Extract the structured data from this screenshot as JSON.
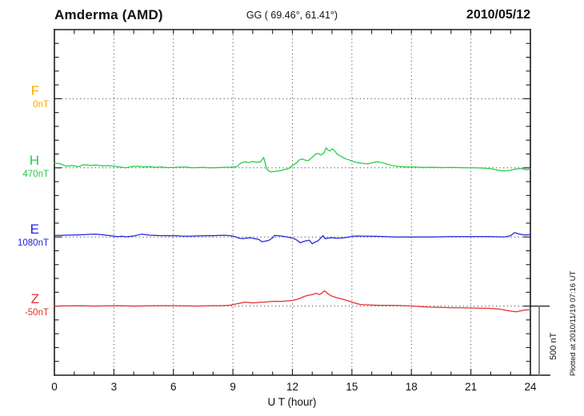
{
  "header": {
    "station": "Amderma (AMD)",
    "coordinates": "GG ( 69.46°,  61.41°)",
    "date": "2010/05/12"
  },
  "side_note": "Plotted at 2010/11/19 07:16 UT",
  "chart_data": {
    "type": "line",
    "title": "Amderma (AMD) magnetogram 2010/05/12",
    "xlabel": "U T (hour)",
    "x_range": [
      0,
      24
    ],
    "x_major_ticks": [
      0,
      3,
      6,
      9,
      12,
      15,
      18,
      21,
      24
    ],
    "x_minor_tick_step_hours": 1,
    "y_unit": "nT",
    "y_tick_step_nT": 100,
    "channel_spacing_nT": 500,
    "grid": {
      "vertical_dotted_at_hours": [
        3,
        6,
        9,
        12,
        15,
        18,
        21
      ],
      "horizontal_dotted_at_baselines": true
    },
    "scale_bar": {
      "label": "500 nT",
      "span_nT": 500
    },
    "channels": [
      {
        "label": "F",
        "baseline_label": "0nT",
        "baseline_nT": 0,
        "color": "#ffaa00",
        "points": []
      },
      {
        "label": "H",
        "baseline_label": "470nT",
        "baseline_nT": 470,
        "color": "#22cc44",
        "points": [
          [
            0,
            505
          ],
          [
            0.3,
            499
          ],
          [
            0.6,
            482
          ],
          [
            0.9,
            487
          ],
          [
            1.2,
            478
          ],
          [
            1.5,
            493
          ],
          [
            1.8,
            487
          ],
          [
            2.1,
            490
          ],
          [
            2.4,
            484
          ],
          [
            2.7,
            487
          ],
          [
            3,
            482
          ],
          [
            3.3,
            476
          ],
          [
            3.6,
            470
          ],
          [
            3.9,
            479
          ],
          [
            4.2,
            482
          ],
          [
            4.5,
            476
          ],
          [
            4.8,
            478
          ],
          [
            5.1,
            474
          ],
          [
            5.4,
            476
          ],
          [
            5.7,
            472
          ],
          [
            6,
            473
          ],
          [
            6.3,
            475
          ],
          [
            6.6,
            476
          ],
          [
            6.9,
            471
          ],
          [
            7.2,
            472
          ],
          [
            7.5,
            474
          ],
          [
            7.8,
            470
          ],
          [
            8.1,
            471
          ],
          [
            8.4,
            473
          ],
          [
            8.7,
            474
          ],
          [
            9,
            476
          ],
          [
            9.2,
            479
          ],
          [
            9.4,
            505
          ],
          [
            9.6,
            513
          ],
          [
            9.8,
            508
          ],
          [
            10,
            516
          ],
          [
            10.2,
            510
          ],
          [
            10.4,
            514
          ],
          [
            10.55,
            545
          ],
          [
            10.7,
            462
          ],
          [
            10.85,
            443
          ],
          [
            11,
            441
          ],
          [
            11.2,
            446
          ],
          [
            11.4,
            449
          ],
          [
            11.6,
            458
          ],
          [
            11.8,
            464
          ],
          [
            12,
            487
          ],
          [
            12.2,
            505
          ],
          [
            12.35,
            528
          ],
          [
            12.5,
            534
          ],
          [
            12.65,
            525
          ],
          [
            12.8,
            522
          ],
          [
            13,
            545
          ],
          [
            13.15,
            568
          ],
          [
            13.3,
            574
          ],
          [
            13.45,
            563
          ],
          [
            13.6,
            580
          ],
          [
            13.7,
            615
          ],
          [
            13.8,
            598
          ],
          [
            13.9,
            592
          ],
          [
            14,
            608
          ],
          [
            14.1,
            598
          ],
          [
            14.25,
            570
          ],
          [
            14.4,
            557
          ],
          [
            14.55,
            545
          ],
          [
            14.7,
            534
          ],
          [
            14.85,
            528
          ],
          [
            15,
            519
          ],
          [
            15.2,
            510
          ],
          [
            15.4,
            505
          ],
          [
            15.6,
            501
          ],
          [
            15.8,
            499
          ],
          [
            16,
            505
          ],
          [
            16.2,
            514
          ],
          [
            16.4,
            511
          ],
          [
            16.6,
            505
          ],
          [
            16.8,
            496
          ],
          [
            17,
            488
          ],
          [
            17.2,
            482
          ],
          [
            17.5,
            478
          ],
          [
            17.8,
            476
          ],
          [
            18.1,
            476
          ],
          [
            18.4,
            474
          ],
          [
            18.7,
            473
          ],
          [
            19,
            474
          ],
          [
            19.3,
            473
          ],
          [
            19.6,
            472
          ],
          [
            20,
            473
          ],
          [
            20.4,
            472
          ],
          [
            20.8,
            470
          ],
          [
            21.2,
            470
          ],
          [
            21.6,
            468
          ],
          [
            22,
            464
          ],
          [
            22.3,
            455
          ],
          [
            22.6,
            447
          ],
          [
            22.9,
            450
          ],
          [
            23.2,
            460
          ],
          [
            23.5,
            464
          ],
          [
            23.7,
            460
          ],
          [
            23.85,
            456
          ],
          [
            24,
            463
          ]
        ]
      },
      {
        "label": "E",
        "baseline_label": "1080nT",
        "baseline_nT": 1080,
        "color": "#2222dd",
        "points": [
          [
            0,
            1092
          ],
          [
            0.3,
            1091
          ],
          [
            0.6,
            1093
          ],
          [
            0.9,
            1094
          ],
          [
            1.2,
            1095
          ],
          [
            1.5,
            1097
          ],
          [
            1.8,
            1099
          ],
          [
            2.1,
            1100
          ],
          [
            2.4,
            1096
          ],
          [
            2.7,
            1091
          ],
          [
            3,
            1086
          ],
          [
            3.2,
            1082
          ],
          [
            3.4,
            1086
          ],
          [
            3.6,
            1081
          ],
          [
            3.8,
            1084
          ],
          [
            4,
            1087
          ],
          [
            4.2,
            1094
          ],
          [
            4.4,
            1100
          ],
          [
            4.6,
            1097
          ],
          [
            4.8,
            1093
          ],
          [
            5,
            1092
          ],
          [
            5.3,
            1090
          ],
          [
            5.6,
            1089
          ],
          [
            5.9,
            1089
          ],
          [
            6.2,
            1088
          ],
          [
            6.5,
            1086
          ],
          [
            6.8,
            1086
          ],
          [
            7.1,
            1087
          ],
          [
            7.4,
            1088
          ],
          [
            7.7,
            1089
          ],
          [
            8,
            1089
          ],
          [
            8.3,
            1091
          ],
          [
            8.6,
            1092
          ],
          [
            8.9,
            1088
          ],
          [
            9.1,
            1083
          ],
          [
            9.3,
            1071
          ],
          [
            9.5,
            1068
          ],
          [
            9.7,
            1072
          ],
          [
            9.9,
            1074
          ],
          [
            10.1,
            1067
          ],
          [
            10.3,
            1063
          ],
          [
            10.45,
            1046
          ],
          [
            10.6,
            1049
          ],
          [
            10.8,
            1055
          ],
          [
            11,
            1073
          ],
          [
            11.1,
            1091
          ],
          [
            11.3,
            1088
          ],
          [
            11.5,
            1086
          ],
          [
            11.7,
            1081
          ],
          [
            12,
            1072
          ],
          [
            12.2,
            1060
          ],
          [
            12.4,
            1038
          ],
          [
            12.55,
            1047
          ],
          [
            12.7,
            1052
          ],
          [
            12.85,
            1057
          ],
          [
            13,
            1031
          ],
          [
            13.15,
            1043
          ],
          [
            13.3,
            1052
          ],
          [
            13.45,
            1075
          ],
          [
            13.55,
            1089
          ],
          [
            13.65,
            1067
          ],
          [
            13.8,
            1072
          ],
          [
            14,
            1075
          ],
          [
            14.2,
            1071
          ],
          [
            14.4,
            1072
          ],
          [
            14.6,
            1074
          ],
          [
            14.8,
            1078
          ],
          [
            15,
            1085
          ],
          [
            15.3,
            1087
          ],
          [
            15.6,
            1086
          ],
          [
            16,
            1086
          ],
          [
            16.4,
            1084
          ],
          [
            16.8,
            1082
          ],
          [
            17.2,
            1080
          ],
          [
            17.6,
            1080
          ],
          [
            18,
            1080
          ],
          [
            18.5,
            1080
          ],
          [
            19,
            1080
          ],
          [
            19.5,
            1081
          ],
          [
            20,
            1083
          ],
          [
            20.5,
            1083
          ],
          [
            21,
            1083
          ],
          [
            21.5,
            1083
          ],
          [
            22,
            1083
          ],
          [
            22.4,
            1081
          ],
          [
            22.7,
            1080
          ],
          [
            23,
            1089
          ],
          [
            23.2,
            1112
          ],
          [
            23.45,
            1101
          ],
          [
            23.7,
            1094
          ],
          [
            24,
            1097
          ]
        ]
      },
      {
        "label": "Z",
        "baseline_label": "-50nT",
        "baseline_nT": -50,
        "color": "#e62e2e",
        "points": [
          [
            0,
            -50
          ],
          [
            0.4,
            -49
          ],
          [
            0.8,
            -48
          ],
          [
            1.2,
            -47
          ],
          [
            1.6,
            -48
          ],
          [
            2,
            -50
          ],
          [
            2.4,
            -49
          ],
          [
            2.8,
            -48
          ],
          [
            3.2,
            -47
          ],
          [
            3.6,
            -48
          ],
          [
            4,
            -50
          ],
          [
            4.4,
            -49
          ],
          [
            4.8,
            -48
          ],
          [
            5.2,
            -47
          ],
          [
            5.6,
            -47
          ],
          [
            6,
            -47
          ],
          [
            6.4,
            -48
          ],
          [
            6.8,
            -49
          ],
          [
            7.2,
            -50
          ],
          [
            7.6,
            -48
          ],
          [
            8,
            -47
          ],
          [
            8.4,
            -47
          ],
          [
            8.8,
            -44
          ],
          [
            9,
            -40
          ],
          [
            9.2,
            -33
          ],
          [
            9.4,
            -28
          ],
          [
            9.6,
            -22
          ],
          [
            9.8,
            -24
          ],
          [
            10,
            -27
          ],
          [
            10.2,
            -25
          ],
          [
            10.4,
            -22
          ],
          [
            10.6,
            -21
          ],
          [
            10.8,
            -18
          ],
          [
            11,
            -16
          ],
          [
            11.2,
            -15
          ],
          [
            11.4,
            -16
          ],
          [
            11.6,
            -14
          ],
          [
            11.8,
            -12
          ],
          [
            12,
            -9
          ],
          [
            12.2,
            -3
          ],
          [
            12.4,
            7
          ],
          [
            12.6,
            20
          ],
          [
            12.8,
            28
          ],
          [
            13,
            33
          ],
          [
            13.2,
            43
          ],
          [
            13.35,
            33
          ],
          [
            13.5,
            45
          ],
          [
            13.6,
            60
          ],
          [
            13.7,
            52
          ],
          [
            13.8,
            38
          ],
          [
            14,
            21
          ],
          [
            14.2,
            12
          ],
          [
            14.4,
            5
          ],
          [
            14.6,
            -3
          ],
          [
            14.8,
            -12
          ],
          [
            15,
            -21
          ],
          [
            15.2,
            -30
          ],
          [
            15.4,
            -38
          ],
          [
            15.6,
            -40
          ],
          [
            15.8,
            -41
          ],
          [
            16.1,
            -43
          ],
          [
            16.4,
            -44
          ],
          [
            16.7,
            -44
          ],
          [
            17,
            -45
          ],
          [
            17.4,
            -46
          ],
          [
            17.8,
            -48
          ],
          [
            18.2,
            -51
          ],
          [
            18.6,
            -55
          ],
          [
            19,
            -58
          ],
          [
            19.4,
            -59
          ],
          [
            19.8,
            -61
          ],
          [
            20.2,
            -62
          ],
          [
            20.6,
            -63
          ],
          [
            21,
            -64
          ],
          [
            21.4,
            -65
          ],
          [
            21.8,
            -66
          ],
          [
            22.2,
            -69
          ],
          [
            22.5,
            -73
          ],
          [
            22.8,
            -81
          ],
          [
            23.1,
            -88
          ],
          [
            23.3,
            -91
          ],
          [
            23.5,
            -85
          ],
          [
            23.7,
            -79
          ],
          [
            23.85,
            -77
          ],
          [
            24,
            -74
          ]
        ]
      }
    ]
  }
}
